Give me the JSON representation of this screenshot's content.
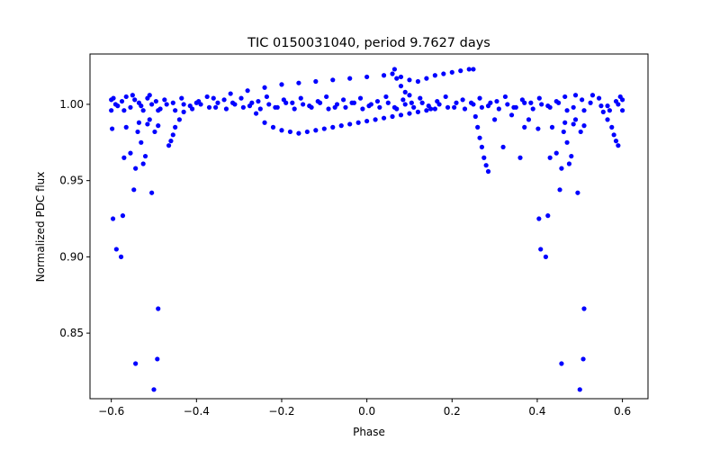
{
  "chart_data": {
    "type": "scatter",
    "title": "TIC 0150031040, period 9.7627 days",
    "xlabel": "Phase",
    "ylabel": "Normalized PDC flux",
    "xlim": [
      -0.65,
      0.66
    ],
    "ylim": [
      0.807,
      1.033
    ],
    "xticks": [
      -0.6,
      -0.4,
      -0.2,
      0.0,
      0.2,
      0.4,
      0.6
    ],
    "xtick_labels": [
      "−0.6",
      "−0.4",
      "−0.2",
      "0.0",
      "0.2",
      "0.4",
      "0.6"
    ],
    "yticks": [
      0.85,
      0.9,
      0.95,
      1.0
    ],
    "ytick_labels": [
      "0.85",
      "0.90",
      "0.95",
      "1.00"
    ],
    "grid": false,
    "marker_color": "#0000ff",
    "series": [
      {
        "name": "flux",
        "points": [
          [
            -0.595,
            1.004
          ],
          [
            -0.585,
            0.999
          ],
          [
            -0.575,
            1.002
          ],
          [
            -0.565,
            1.005
          ],
          [
            -0.555,
            0.998
          ],
          [
            -0.545,
            1.003
          ],
          [
            -0.535,
            1.001
          ],
          [
            -0.525,
            0.996
          ],
          [
            -0.515,
            1.004
          ],
          [
            -0.505,
            1.0
          ],
          [
            -0.495,
            1.002
          ],
          [
            -0.485,
            0.997
          ],
          [
            -0.475,
            1.003
          ],
          [
            -0.455,
            1.001
          ],
          [
            -0.435,
            1.004
          ],
          [
            -0.415,
            0.999
          ],
          [
            -0.395,
            1.002
          ],
          [
            -0.375,
            1.005
          ],
          [
            -0.355,
            0.998
          ],
          [
            -0.335,
            1.003
          ],
          [
            -0.315,
            1.001
          ],
          [
            -0.295,
            1.004
          ],
          [
            -0.275,
            0.999
          ],
          [
            -0.255,
            1.002
          ],
          [
            -0.235,
            1.005
          ],
          [
            -0.215,
            0.998
          ],
          [
            -0.195,
            1.003
          ],
          [
            -0.175,
            1.001
          ],
          [
            -0.155,
            1.004
          ],
          [
            -0.135,
            0.999
          ],
          [
            -0.115,
            1.002
          ],
          [
            -0.095,
            1.005
          ],
          [
            -0.075,
            0.998
          ],
          [
            -0.055,
            1.003
          ],
          [
            -0.035,
            1.001
          ],
          [
            -0.015,
            1.004
          ],
          [
            0.005,
            0.999
          ],
          [
            0.025,
            1.002
          ],
          [
            0.045,
            1.005
          ],
          [
            0.065,
            0.998
          ],
          [
            0.085,
            1.003
          ],
          [
            0.105,
            1.001
          ],
          [
            0.125,
            1.004
          ],
          [
            0.145,
            0.999
          ],
          [
            0.165,
            1.002
          ],
          [
            0.185,
            1.005
          ],
          [
            0.205,
            0.998
          ],
          [
            0.225,
            1.003
          ],
          [
            0.245,
            1.001
          ],
          [
            0.265,
            1.004
          ],
          [
            0.285,
            0.999
          ],
          [
            0.305,
            1.002
          ],
          [
            0.325,
            1.005
          ],
          [
            0.345,
            0.998
          ],
          [
            0.365,
            1.003
          ],
          [
            0.385,
            1.001
          ],
          [
            0.405,
            1.004
          ],
          [
            0.425,
            0.999
          ],
          [
            0.445,
            1.002
          ],
          [
            0.465,
            1.005
          ],
          [
            0.485,
            0.998
          ],
          [
            0.505,
            1.003
          ],
          [
            0.525,
            1.001
          ],
          [
            0.545,
            1.004
          ],
          [
            0.565,
            0.999
          ],
          [
            0.585,
            1.002
          ],
          [
            0.595,
            1.005
          ],
          [
            -0.59,
            1.0
          ],
          [
            -0.57,
            0.996
          ],
          [
            -0.55,
            1.006
          ],
          [
            -0.53,
            0.999
          ],
          [
            -0.51,
            1.006
          ],
          [
            -0.49,
            0.996
          ],
          [
            -0.47,
            1.0
          ],
          [
            -0.45,
            0.996
          ],
          [
            -0.43,
            1.0
          ],
          [
            -0.41,
            0.997
          ],
          [
            -0.39,
            1.0
          ],
          [
            -0.37,
            0.998
          ],
          [
            -0.35,
            1.001
          ],
          [
            -0.33,
            0.997
          ],
          [
            -0.31,
            1.0
          ],
          [
            -0.29,
            0.998
          ],
          [
            -0.27,
            1.001
          ],
          [
            -0.25,
            0.997
          ],
          [
            -0.23,
            1.0
          ],
          [
            -0.21,
            0.998
          ],
          [
            -0.19,
            1.001
          ],
          [
            -0.17,
            0.997
          ],
          [
            -0.15,
            1.0
          ],
          [
            -0.13,
            0.998
          ],
          [
            -0.11,
            1.001
          ],
          [
            -0.09,
            0.997
          ],
          [
            -0.07,
            1.0
          ],
          [
            -0.05,
            0.998
          ],
          [
            -0.03,
            1.001
          ],
          [
            -0.01,
            0.997
          ],
          [
            0.01,
            1.0
          ],
          [
            0.03,
            0.998
          ],
          [
            0.05,
            1.001
          ],
          [
            0.07,
            0.997
          ],
          [
            0.09,
            1.0
          ],
          [
            0.11,
            0.998
          ],
          [
            0.13,
            1.001
          ],
          [
            0.15,
            0.997
          ],
          [
            0.17,
            1.0
          ],
          [
            0.19,
            0.998
          ],
          [
            0.21,
            1.001
          ],
          [
            0.23,
            0.997
          ],
          [
            0.25,
            1.0
          ],
          [
            0.27,
            0.998
          ],
          [
            0.29,
            1.001
          ],
          [
            0.31,
            0.997
          ],
          [
            0.33,
            1.0
          ],
          [
            0.35,
            0.998
          ],
          [
            0.37,
            1.001
          ],
          [
            0.39,
            0.997
          ],
          [
            0.41,
            1.0
          ],
          [
            0.43,
            0.998
          ],
          [
            0.45,
            1.001
          ],
          [
            0.47,
            0.996
          ],
          [
            0.49,
            1.006
          ],
          [
            0.51,
            0.996
          ],
          [
            0.53,
            1.006
          ],
          [
            0.55,
            0.999
          ],
          [
            0.57,
            0.996
          ],
          [
            0.59,
            1.0
          ],
          [
            -0.6,
            1.003
          ],
          [
            -0.6,
            0.996
          ],
          [
            0.6,
            1.003
          ],
          [
            0.6,
            0.996
          ],
          [
            -0.4,
            1.001
          ],
          [
            -0.36,
            1.004
          ],
          [
            -0.32,
            1.007
          ],
          [
            -0.28,
            1.009
          ],
          [
            -0.24,
            1.011
          ],
          [
            -0.2,
            1.013
          ],
          [
            -0.16,
            1.014
          ],
          [
            -0.12,
            1.015
          ],
          [
            -0.08,
            1.016
          ],
          [
            -0.04,
            1.017
          ],
          [
            0.0,
            1.018
          ],
          [
            0.04,
            1.019
          ],
          [
            0.08,
            1.018
          ],
          [
            0.1,
            1.016
          ],
          [
            0.12,
            1.015
          ],
          [
            0.14,
            1.017
          ],
          [
            0.16,
            1.019
          ],
          [
            0.18,
            1.02
          ],
          [
            0.2,
            1.021
          ],
          [
            0.22,
            1.022
          ],
          [
            0.24,
            1.023
          ],
          [
            0.25,
            1.023
          ],
          [
            0.06,
            1.02
          ],
          [
            0.065,
            1.023
          ],
          [
            0.07,
            1.017
          ],
          [
            0.08,
            1.012
          ],
          [
            0.09,
            1.008
          ],
          [
            0.1,
            1.006
          ],
          [
            -0.26,
            0.994
          ],
          [
            -0.24,
            0.988
          ],
          [
            -0.22,
            0.985
          ],
          [
            -0.2,
            0.983
          ],
          [
            -0.18,
            0.982
          ],
          [
            -0.16,
            0.981
          ],
          [
            -0.14,
            0.982
          ],
          [
            -0.12,
            0.983
          ],
          [
            -0.1,
            0.984
          ],
          [
            -0.08,
            0.985
          ],
          [
            -0.06,
            0.986
          ],
          [
            -0.04,
            0.987
          ],
          [
            -0.02,
            0.988
          ],
          [
            0.0,
            0.989
          ],
          [
            0.02,
            0.99
          ],
          [
            0.04,
            0.991
          ],
          [
            0.06,
            0.992
          ],
          [
            0.08,
            0.993
          ],
          [
            0.1,
            0.994
          ],
          [
            0.12,
            0.995
          ],
          [
            0.14,
            0.996
          ],
          [
            0.16,
            0.997
          ],
          [
            -0.43,
            0.995
          ],
          [
            -0.44,
            0.99
          ],
          [
            -0.45,
            0.985
          ],
          [
            -0.455,
            0.98
          ],
          [
            -0.46,
            0.976
          ],
          [
            -0.465,
            0.973
          ],
          [
            0.555,
            0.995
          ],
          [
            0.565,
            0.99
          ],
          [
            0.575,
            0.985
          ],
          [
            0.58,
            0.98
          ],
          [
            0.585,
            0.976
          ],
          [
            0.59,
            0.973
          ],
          [
            0.255,
            0.992
          ],
          [
            0.26,
            0.985
          ],
          [
            0.265,
            0.978
          ],
          [
            0.27,
            0.972
          ],
          [
            0.275,
            0.965
          ],
          [
            0.28,
            0.96
          ],
          [
            0.285,
            0.956
          ],
          [
            -0.598,
            0.984
          ],
          [
            -0.596,
            0.925
          ],
          [
            -0.588,
            0.905
          ],
          [
            -0.577,
            0.9
          ],
          [
            -0.573,
            0.927
          ],
          [
            -0.57,
            0.965
          ],
          [
            -0.565,
            0.985
          ],
          [
            -0.555,
            0.968
          ],
          [
            -0.547,
            0.944
          ],
          [
            -0.543,
            0.958
          ],
          [
            -0.538,
            0.982
          ],
          [
            -0.53,
            0.975
          ],
          [
            -0.525,
            0.961
          ],
          [
            -0.52,
            0.966
          ],
          [
            -0.515,
            0.987
          ],
          [
            -0.505,
            0.942
          ],
          [
            -0.498,
            0.982
          ],
          [
            -0.49,
            0.866
          ],
          [
            -0.492,
            0.833
          ],
          [
            -0.5,
            0.813
          ],
          [
            -0.543,
            0.83
          ],
          [
            -0.535,
            0.988
          ],
          [
            -0.51,
            0.99
          ],
          [
            0.402,
            0.984
          ],
          [
            0.404,
            0.925
          ],
          [
            0.408,
            0.905
          ],
          [
            0.42,
            0.9
          ],
          [
            0.425,
            0.927
          ],
          [
            0.43,
            0.965
          ],
          [
            0.435,
            0.985
          ],
          [
            0.445,
            0.968
          ],
          [
            0.453,
            0.944
          ],
          [
            0.457,
            0.958
          ],
          [
            0.462,
            0.982
          ],
          [
            0.47,
            0.975
          ],
          [
            0.475,
            0.961
          ],
          [
            0.48,
            0.966
          ],
          [
            0.485,
            0.987
          ],
          [
            0.495,
            0.942
          ],
          [
            0.502,
            0.982
          ],
          [
            0.51,
            0.866
          ],
          [
            0.508,
            0.833
          ],
          [
            0.5,
            0.813
          ],
          [
            0.457,
            0.83
          ],
          [
            0.465,
            0.988
          ],
          [
            0.49,
            0.99
          ],
          [
            0.32,
            0.972
          ],
          [
            0.36,
            0.965
          ],
          [
            0.37,
            0.985
          ],
          [
            0.38,
            0.99
          ],
          [
            0.3,
            0.99
          ],
          [
            0.34,
            0.993
          ],
          [
            -0.49,
            0.986
          ],
          [
            0.51,
            0.986
          ]
        ]
      }
    ]
  }
}
